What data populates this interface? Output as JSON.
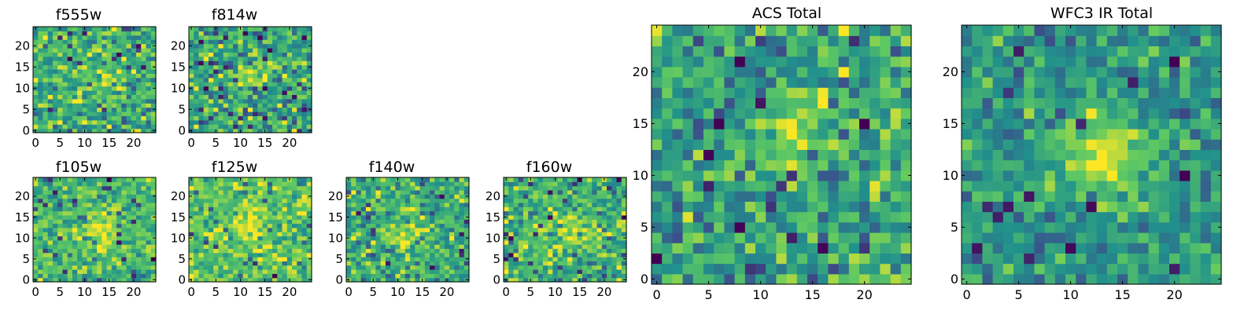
{
  "figure": {
    "background": "#ffffff",
    "colormap": "viridis",
    "colormap_stops": [
      "#440154",
      "#3b528b",
      "#21918c",
      "#5ec962",
      "#fde725"
    ]
  },
  "chart_data": [
    {
      "id": "f555w",
      "type": "heatmap",
      "title": "f555w",
      "xlim": [
        0,
        24
      ],
      "ylim": [
        0,
        24
      ],
      "xticks": [
        0,
        5,
        10,
        15,
        20
      ],
      "yticks": [
        0,
        5,
        10,
        15,
        20
      ],
      "grid": false,
      "grid_size": [
        25,
        25
      ],
      "seed": 11,
      "mean_level": 0.66,
      "noise": 0.16,
      "peak": {
        "x": 13,
        "y": 13,
        "amp": 0.12,
        "sigma": 3.0
      }
    },
    {
      "id": "f814w",
      "type": "heatmap",
      "title": "f814w",
      "xlim": [
        0,
        24
      ],
      "ylim": [
        0,
        24
      ],
      "xticks": [
        0,
        5,
        10,
        15,
        20
      ],
      "yticks": [
        0,
        5,
        10,
        15,
        20
      ],
      "grid": false,
      "grid_size": [
        25,
        25
      ],
      "seed": 23,
      "mean_level": 0.58,
      "noise": 0.18,
      "peak": {
        "x": 13,
        "y": 13,
        "amp": 0.35,
        "sigma": 2.2
      }
    },
    {
      "id": "f105w",
      "type": "heatmap",
      "title": "f105w",
      "xlim": [
        0,
        24
      ],
      "ylim": [
        0,
        24
      ],
      "xticks": [
        0,
        5,
        10,
        15,
        20
      ],
      "yticks": [
        0,
        5,
        10,
        15,
        20
      ],
      "grid": false,
      "grid_size": [
        25,
        25
      ],
      "seed": 37,
      "mean_level": 0.68,
      "noise": 0.13,
      "peak": {
        "x": 13,
        "y": 12,
        "amp": 0.28,
        "sigma": 3.0
      }
    },
    {
      "id": "f125w",
      "type": "heatmap",
      "title": "f125w",
      "xlim": [
        0,
        24
      ],
      "ylim": [
        0,
        24
      ],
      "xticks": [
        0,
        5,
        10,
        15,
        20
      ],
      "yticks": [
        0,
        5,
        10,
        15,
        20
      ],
      "grid": false,
      "grid_size": [
        25,
        25
      ],
      "seed": 41,
      "mean_level": 0.72,
      "noise": 0.14,
      "peak": {
        "x": 12,
        "y": 12,
        "amp": 0.12,
        "sigma": 4.0
      }
    },
    {
      "id": "f140w",
      "type": "heatmap",
      "title": "f140w",
      "xlim": [
        0,
        24
      ],
      "ylim": [
        0,
        24
      ],
      "xticks": [
        0,
        5,
        10,
        15,
        20
      ],
      "yticks": [
        0,
        5,
        10,
        15,
        20
      ],
      "grid": false,
      "grid_size": [
        25,
        25
      ],
      "seed": 53,
      "mean_level": 0.62,
      "noise": 0.16,
      "peak": {
        "x": 12,
        "y": 10,
        "amp": 0.22,
        "sigma": 3.0
      }
    },
    {
      "id": "f160w",
      "type": "heatmap",
      "title": "f160w",
      "xlim": [
        0,
        24
      ],
      "ylim": [
        0,
        24
      ],
      "xticks": [
        0,
        5,
        10,
        15,
        20
      ],
      "yticks": [
        0,
        5,
        10,
        15,
        20
      ],
      "grid": false,
      "grid_size": [
        25,
        25
      ],
      "seed": 67,
      "mean_level": 0.64,
      "noise": 0.15,
      "peak": {
        "x": 13,
        "y": 12,
        "amp": 0.26,
        "sigma": 2.6
      }
    },
    {
      "id": "acs_total",
      "type": "heatmap",
      "title": "ACS Total",
      "xlim": [
        0,
        24
      ],
      "ylim": [
        0,
        24
      ],
      "xticks": [
        0,
        5,
        10,
        15,
        20
      ],
      "yticks": [
        0,
        5,
        10,
        15,
        20
      ],
      "grid": false,
      "grid_size": [
        25,
        25
      ],
      "seed": 79,
      "mean_level": 0.58,
      "noise": 0.17,
      "peak": {
        "x": 13,
        "y": 14,
        "amp": 0.38,
        "sigma": 2.0
      }
    },
    {
      "id": "wfc3_ir_total",
      "type": "heatmap",
      "title": "WFC3 IR Total",
      "xlim": [
        0,
        24
      ],
      "ylim": [
        0,
        24
      ],
      "xticks": [
        0,
        5,
        10,
        15,
        20
      ],
      "yticks": [
        0,
        5,
        10,
        15,
        20
      ],
      "grid": false,
      "grid_size": [
        25,
        25
      ],
      "seed": 97,
      "mean_level": 0.52,
      "noise": 0.12,
      "peak": {
        "x": 13,
        "y": 12,
        "amp": 0.45,
        "sigma": 3.0
      }
    }
  ]
}
